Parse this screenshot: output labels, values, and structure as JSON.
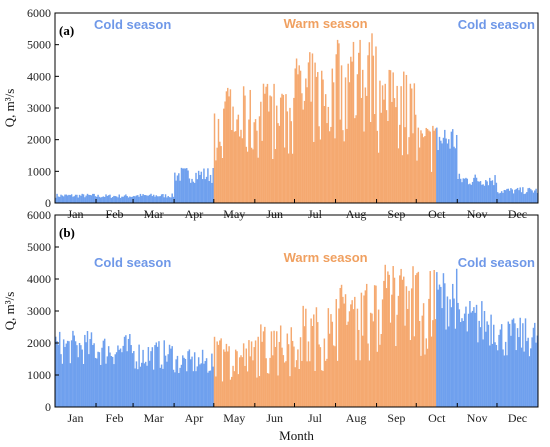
{
  "colors": {
    "cold": "#6fa0ee",
    "warm": "#f5a970",
    "cold_label": "#6f98e8",
    "warm_label": "#f0a060"
  },
  "chart_data": [
    {
      "type": "bar",
      "panel": "(a)",
      "ylabel": "Q, m³/s",
      "ylim": [
        0,
        6000
      ],
      "yticks": [
        0,
        1000,
        2000,
        3000,
        4000,
        5000,
        6000
      ],
      "months": [
        "Jan",
        "Feb",
        "Mar",
        "Apr",
        "May",
        "Jun",
        "Jul",
        "Aug",
        "Sep",
        "Oct",
        "Nov",
        "Dec"
      ],
      "season_labels": [
        "Cold season",
        "Warm season",
        "Cold season"
      ],
      "warm_season_days": [
        121,
        288
      ],
      "series": [
        {
          "season": "cold",
          "approx_range_days": [
            1,
            120
          ],
          "typical_max_by_month": {
            "Jan": 300,
            "Feb": 280,
            "Mar": 300,
            "Apr": 1150
          }
        },
        {
          "season": "warm",
          "approx_range_days": [
            121,
            288
          ],
          "typical_max_by_month": {
            "May": 3700,
            "Jun": 3900,
            "Jul": 4800,
            "Aug": 5400,
            "Sep": 4300,
            "Oct": 2600
          }
        },
        {
          "season": "cold",
          "approx_range_days": [
            289,
            365
          ],
          "typical_max_by_month": {
            "Nov": 950,
            "Dec": 500
          }
        }
      ]
    },
    {
      "type": "bar",
      "panel": "(b)",
      "ylabel": "Q, m³/s",
      "xlabel": "Month",
      "ylim": [
        0,
        6000
      ],
      "yticks": [
        0,
        1000,
        2000,
        3000,
        4000,
        5000,
        6000
      ],
      "months": [
        "Jan",
        "Feb",
        "Mar",
        "Apr",
        "May",
        "Jun",
        "Jul",
        "Aug",
        "Sep",
        "Oct",
        "Nov",
        "Dec"
      ],
      "season_labels": [
        "Cold season",
        "Warm season",
        "Cold season"
      ],
      "warm_season_days": [
        121,
        288
      ],
      "series": [
        {
          "season": "cold",
          "approx_range_days": [
            1,
            120
          ],
          "typical_max_by_month": {
            "Jan": 2400,
            "Feb": 2300,
            "Mar": 2100,
            "Apr": 1800
          }
        },
        {
          "season": "warm",
          "approx_range_days": [
            121,
            288
          ],
          "typical_max_by_month": {
            "May": 2200,
            "Jun": 2600,
            "Jul": 3200,
            "Aug": 3900,
            "Sep": 4500,
            "Oct": 4400
          }
        },
        {
          "season": "cold",
          "approx_range_days": [
            289,
            365
          ],
          "typical_max_by_month": {
            "Nov": 3400,
            "Dec": 2800
          }
        }
      ]
    }
  ]
}
